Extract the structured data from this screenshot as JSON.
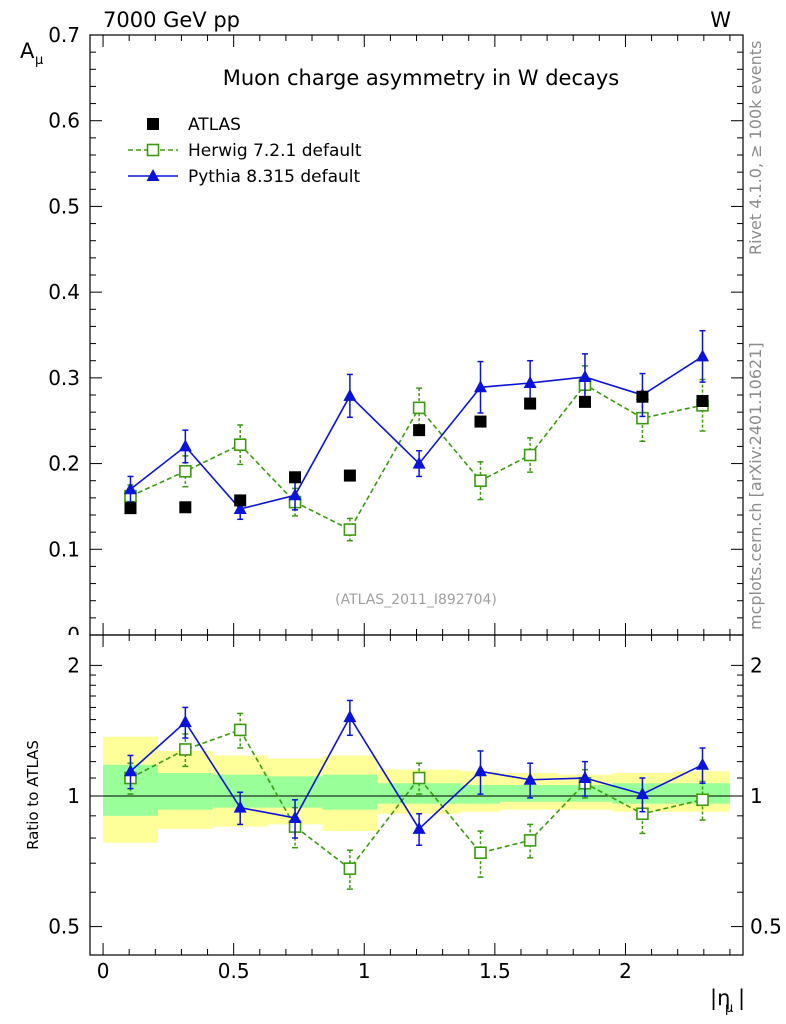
{
  "header": {
    "left": "7000 GeV pp",
    "right": "W"
  },
  "side_text": {
    "rivet": "Rivet 4.1.0, ≥ 100k events",
    "mcplots": "mcplots.cern.ch [arXiv:2401.10621]"
  },
  "chart_data": [
    {
      "type": "scatter",
      "panel": "main",
      "title": "Muon charge asymmetry in W decays",
      "watermark": "(ATLAS_2011_I892704)",
      "ylabel": "A",
      "ylabel_sub": "μ",
      "xlim": [
        -0.05,
        2.45
      ],
      "ylim": [
        0.0,
        0.7
      ],
      "yticks": [
        0.1,
        0.2,
        0.3,
        0.4,
        0.5,
        0.6,
        0.7
      ],
      "ytick_labels": [
        "0.1",
        "0.2",
        "0.3",
        "0.4",
        "0.5",
        "0.6",
        "0.7"
      ],
      "ytick_cut_label": "0",
      "legend_position": "top-left",
      "series": [
        {
          "name": "ATLAS",
          "style": "marker-only",
          "marker": "filled-square",
          "color": "#000000",
          "x": [
            0.105,
            0.315,
            0.525,
            0.735,
            0.945,
            1.21,
            1.445,
            1.635,
            1.845,
            2.065,
            2.295
          ],
          "values": [
            0.148,
            0.149,
            0.157,
            0.184,
            0.186,
            0.239,
            0.249,
            0.27,
            0.272,
            0.278,
            0.273
          ]
        },
        {
          "name": "Herwig 7.2.1 default",
          "style": "dashed",
          "marker": "open-square",
          "color": "#3b9b0f",
          "x": [
            0.105,
            0.315,
            0.525,
            0.735,
            0.945,
            1.21,
            1.445,
            1.635,
            1.845,
            2.065,
            2.295
          ],
          "values": [
            0.162,
            0.191,
            0.222,
            0.155,
            0.123,
            0.265,
            0.18,
            0.21,
            0.292,
            0.253,
            0.268
          ],
          "err": [
            0.013,
            0.018,
            0.023,
            0.016,
            0.013,
            0.023,
            0.022,
            0.02,
            0.022,
            0.027,
            0.03
          ]
        },
        {
          "name": "Pythia 8.315 default",
          "style": "solid",
          "marker": "filled-triangle",
          "color": "#0a14d8",
          "x": [
            0.105,
            0.315,
            0.525,
            0.735,
            0.945,
            1.21,
            1.445,
            1.635,
            1.845,
            2.065,
            2.295
          ],
          "values": [
            0.17,
            0.22,
            0.147,
            0.163,
            0.279,
            0.2,
            0.289,
            0.294,
            0.301,
            0.28,
            0.325
          ],
          "err": [
            0.015,
            0.019,
            0.012,
            0.017,
            0.025,
            0.015,
            0.03,
            0.026,
            0.027,
            0.025,
            0.03
          ]
        }
      ]
    },
    {
      "type": "scatter",
      "panel": "ratio",
      "ylabel": "Ratio to ATLAS",
      "xlabel": "|η",
      "xlabel_sub": "μ",
      "xlim": [
        -0.05,
        2.45
      ],
      "yscale": "log",
      "ylim": [
        0.43,
        2.35
      ],
      "xticks": [
        0,
        0.5,
        1,
        1.5,
        2
      ],
      "xtick_labels": [
        "0",
        "0.5",
        "1",
        "1.5",
        "2"
      ],
      "yticks": [
        0.5,
        1,
        2
      ],
      "ytick_labels": [
        "0.5",
        "1",
        "2"
      ],
      "bands": {
        "yellow_color": "#ffff99",
        "green_color": "#99ff99",
        "edges": [
          0.0,
          0.21,
          0.42,
          0.63,
          0.84,
          1.05,
          1.37,
          1.52,
          1.74,
          1.95,
          2.18,
          2.4
        ],
        "yellow_low": [
          0.78,
          0.84,
          0.85,
          0.86,
          0.83,
          0.91,
          0.92,
          0.93,
          0.93,
          0.92,
          0.92
        ],
        "yellow_high": [
          1.37,
          1.27,
          1.24,
          1.22,
          1.24,
          1.15,
          1.14,
          1.13,
          1.12,
          1.13,
          1.14
        ],
        "green_low": [
          0.9,
          0.93,
          0.94,
          0.94,
          0.93,
          0.96,
          0.96,
          0.97,
          0.97,
          0.96,
          0.96
        ],
        "green_high": [
          1.18,
          1.13,
          1.12,
          1.11,
          1.12,
          1.07,
          1.06,
          1.06,
          1.06,
          1.07,
          1.07
        ]
      },
      "series": [
        {
          "name": "Herwig 7.2.1 default",
          "style": "dashed",
          "marker": "open-square",
          "color": "#3b9b0f",
          "x": [
            0.105,
            0.315,
            0.525,
            0.735,
            0.945,
            1.21,
            1.445,
            1.635,
            1.845,
            2.065,
            2.295
          ],
          "values": [
            1.1,
            1.28,
            1.42,
            0.85,
            0.68,
            1.1,
            0.74,
            0.79,
            1.07,
            0.91,
            0.98
          ],
          "err": [
            0.09,
            0.11,
            0.13,
            0.09,
            0.07,
            0.09,
            0.09,
            0.07,
            0.08,
            0.09,
            0.1
          ]
        },
        {
          "name": "Pythia 8.315 default",
          "style": "solid",
          "marker": "filled-triangle",
          "color": "#0a14d8",
          "x": [
            0.105,
            0.315,
            0.525,
            0.735,
            0.945,
            1.21,
            1.445,
            1.635,
            1.845,
            2.065,
            2.295
          ],
          "values": [
            1.14,
            1.48,
            0.94,
            0.89,
            1.52,
            0.84,
            1.14,
            1.09,
            1.1,
            1.01,
            1.18
          ],
          "err": [
            0.1,
            0.12,
            0.08,
            0.09,
            0.14,
            0.07,
            0.13,
            0.1,
            0.1,
            0.09,
            0.11
          ]
        }
      ]
    }
  ]
}
